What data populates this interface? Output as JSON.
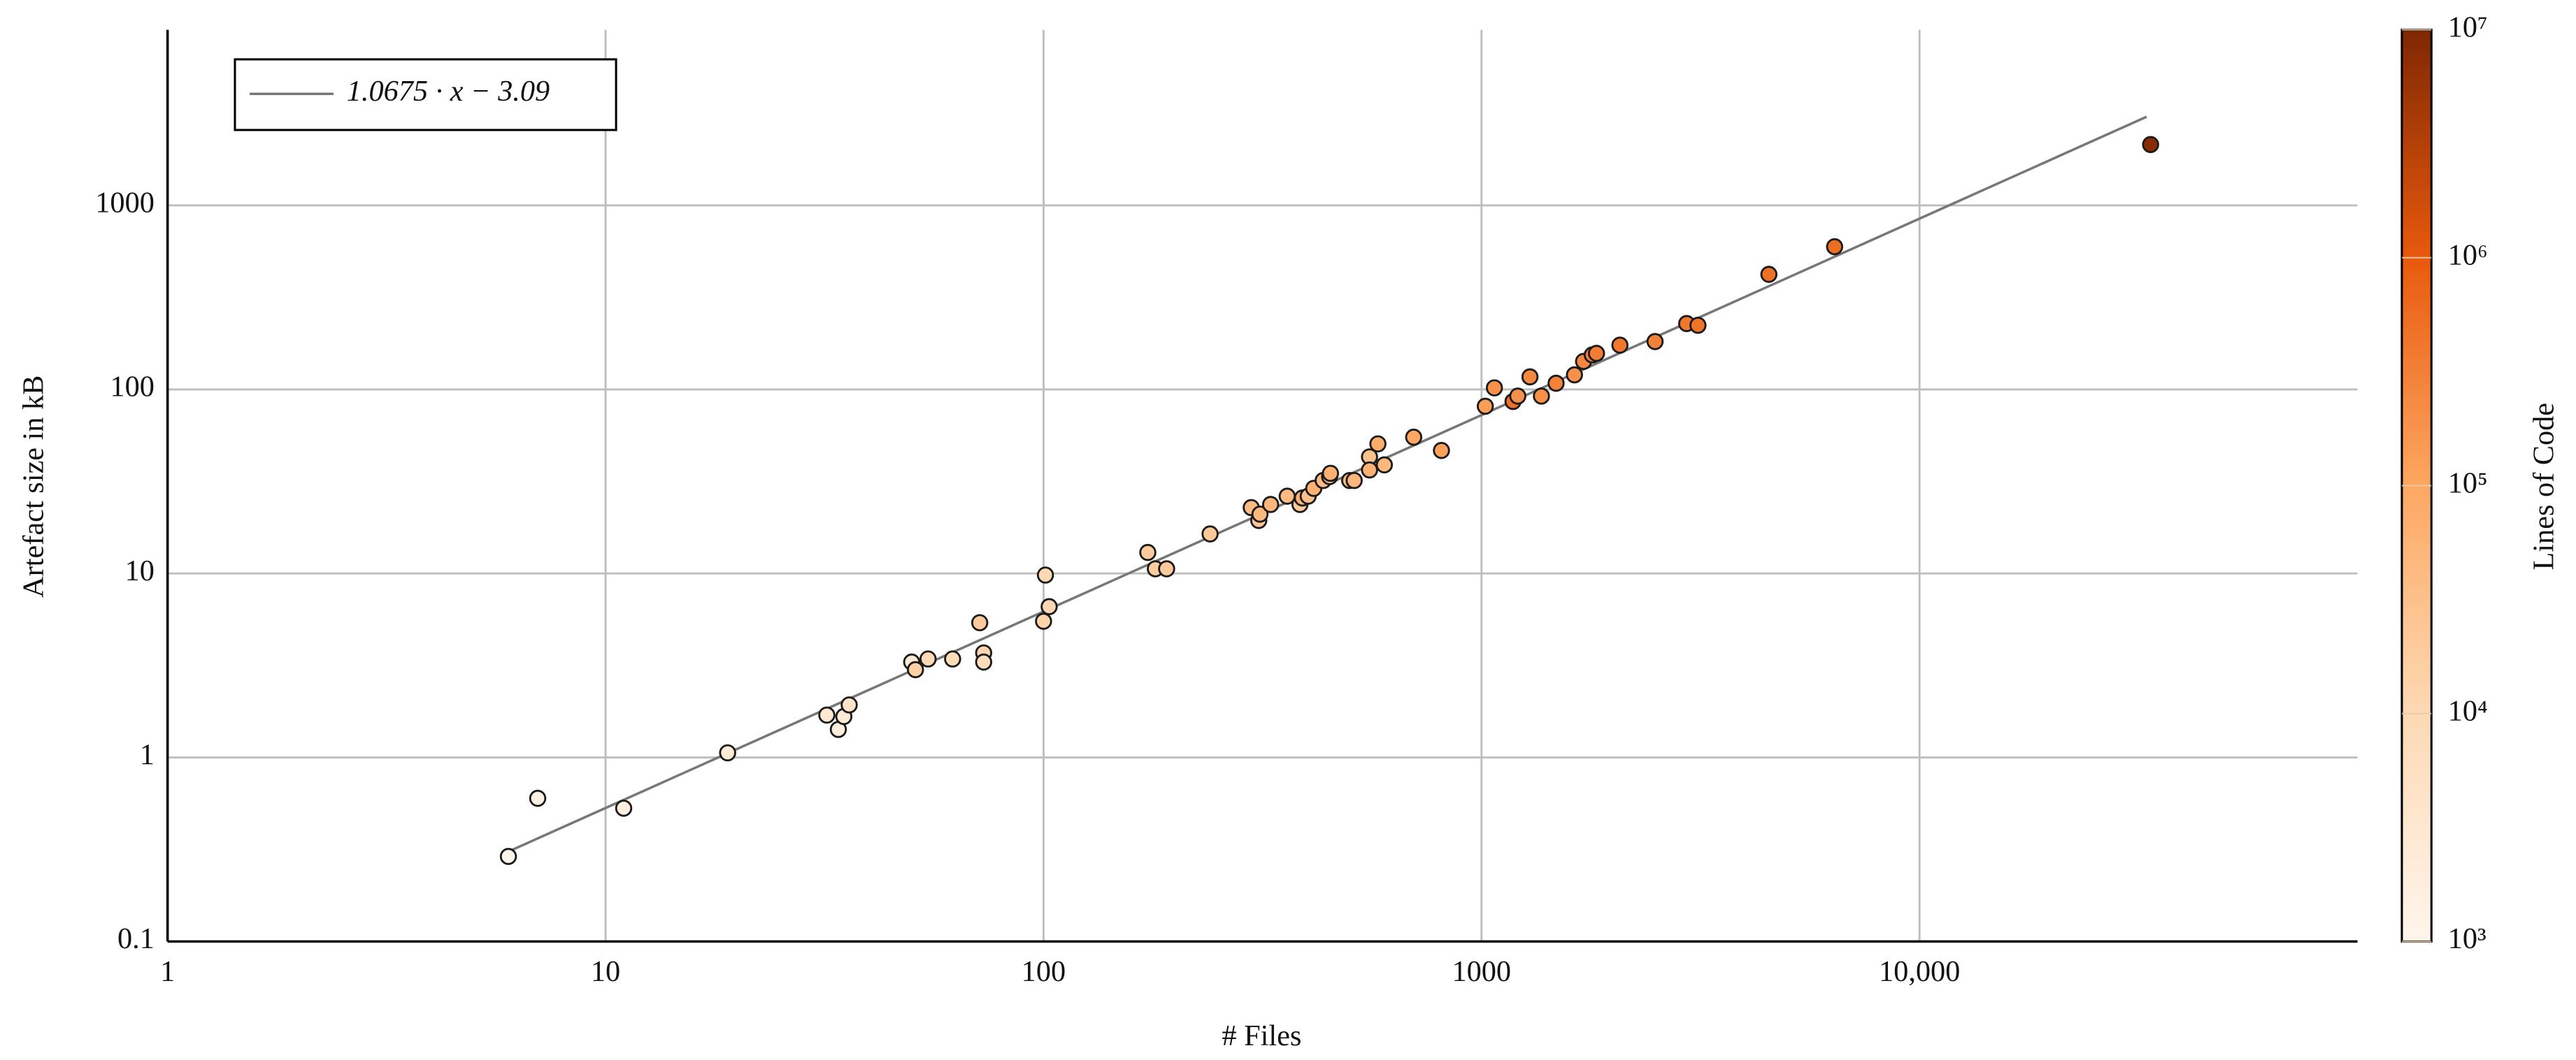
{
  "chart_data": {
    "type": "scatter",
    "xlabel": "# Files",
    "ylabel": "Artefact size in kB",
    "xscale": "log",
    "yscale": "log",
    "xlim": [
      1,
      100000
    ],
    "ylim": [
      0.1,
      9000
    ],
    "xticks": [
      1,
      10,
      100,
      1000,
      {
        "value": 10000,
        "label": "10,000"
      }
    ],
    "yticks": [
      0.1,
      1,
      10,
      100,
      1000
    ],
    "grid": true,
    "legend_position": "upper left",
    "x": [
      6,
      7,
      11,
      19,
      32,
      34,
      35,
      36,
      50,
      51,
      54.5,
      62,
      71.5,
      73,
      73,
      101,
      100,
      103,
      173,
      180,
      191,
      240,
      298,
      310,
      312,
      330,
      360,
      385,
      390,
      402,
      414,
      435,
      450,
      452,
      500,
      512,
      555,
      555,
      580,
      600,
      700,
      810,
      1020,
      1070,
      1180,
      1210,
      1290,
      1370,
      1480,
      1630,
      1710,
      1790,
      1830,
      2070,
      2490,
      2940,
      3120,
      4530,
      6400,
      33700
    ],
    "y": [
      0.29,
      0.6,
      0.53,
      1.06,
      1.7,
      1.42,
      1.67,
      1.93,
      3.3,
      3.0,
      3.43,
      3.43,
      5.4,
      3.7,
      3.3,
      9.8,
      5.5,
      6.6,
      13,
      10.6,
      10.6,
      16.4,
      22.8,
      19.4,
      21,
      23.7,
      26.3,
      23.7,
      25.7,
      26.3,
      29,
      32,
      33.6,
      35,
      32,
      32,
      43,
      36.5,
      50.6,
      38.9,
      55,
      46.6,
      81,
      102,
      86,
      92,
      117,
      92,
      108,
      120,
      142,
      154,
      157,
      174,
      182,
      228,
      223,
      422,
      596,
      2140
    ],
    "lines_of_code": [
      1000,
      1300,
      1600,
      2500,
      3000,
      2000,
      2500,
      4500,
      2500,
      15000,
      9000,
      8000,
      20000,
      12000,
      8000,
      10000,
      13000,
      11000,
      20000,
      18000,
      20000,
      22000,
      40000,
      25000,
      45000,
      50000,
      40000,
      20000,
      60000,
      30000,
      60000,
      40000,
      30000,
      60000,
      40000,
      50000,
      30000,
      60000,
      80000,
      45000,
      100000,
      120000,
      130000,
      200000,
      500000,
      200000,
      250000,
      200000,
      300000,
      200000,
      250000,
      300000,
      350000,
      400000,
      300000,
      400000,
      450000,
      500000,
      550000,
      8000000
    ],
    "fit": {
      "label": "1.0675 · x − 3.09",
      "slope": 1.0675,
      "intercept": -3.09,
      "x_range": [
        6,
        33000
      ],
      "color": "#777777"
    },
    "colorbar": {
      "label": "Lines of Code",
      "scale": "log",
      "lim": [
        1000,
        10000000
      ],
      "ticks": [
        {
          "value": 1000,
          "label": "10³"
        },
        {
          "value": 10000,
          "label": "10⁴"
        },
        {
          "value": 100000,
          "label": "10⁵"
        },
        {
          "value": 1000000,
          "label": "10⁶"
        },
        {
          "value": 10000000,
          "label": "10⁷"
        }
      ],
      "colormap": [
        "#fff5eb",
        "#fdd9b4",
        "#fda762",
        "#e8590c",
        "#7f2704"
      ]
    }
  }
}
